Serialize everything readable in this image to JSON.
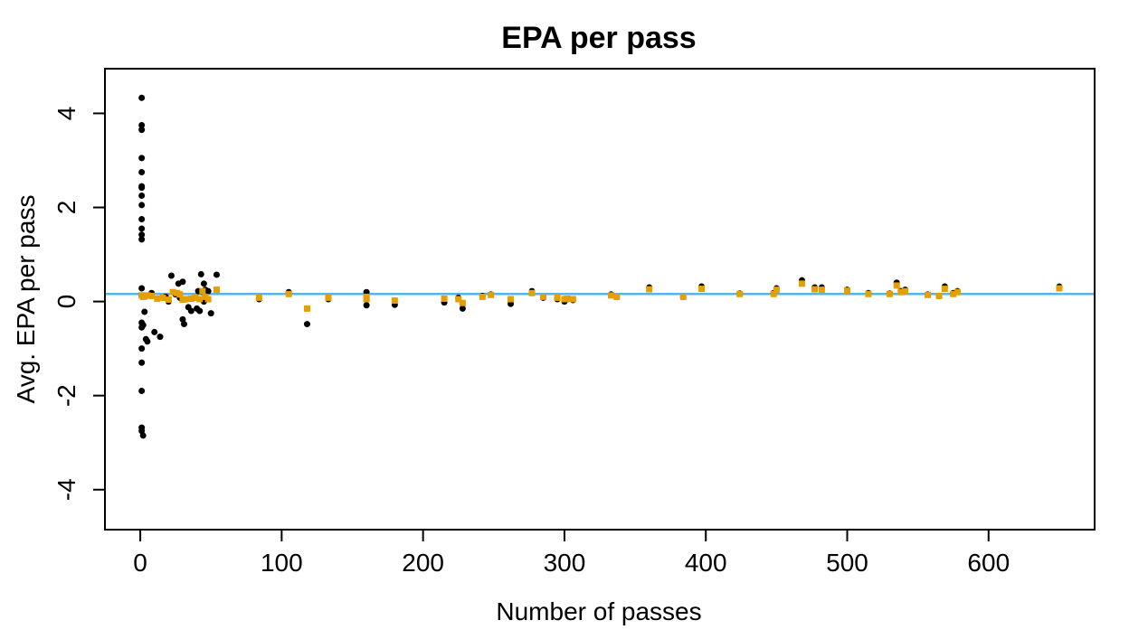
{
  "chart_data": {
    "type": "scatter",
    "title": "EPA per pass",
    "xlabel": "Number of passes",
    "ylabel": "Avg. EPA per pass",
    "xlim": [
      -25,
      675
    ],
    "ylim": [
      -4.85,
      4.95
    ],
    "xticks": [
      0,
      100,
      200,
      300,
      400,
      500,
      600
    ],
    "yticks": [
      -4,
      -2,
      0,
      2,
      4
    ],
    "grid": false,
    "reference_line": {
      "y": 0.16,
      "color": "#56B4E9"
    },
    "series": [
      {
        "marker": "circle",
        "color": "#000000",
        "points": [
          [
            1,
            4.33
          ],
          [
            1,
            3.75
          ],
          [
            1,
            3.65
          ],
          [
            1,
            3.05
          ],
          [
            1,
            2.75
          ],
          [
            1,
            2.45
          ],
          [
            1,
            2.42
          ],
          [
            1,
            2.25
          ],
          [
            1,
            2.05
          ],
          [
            1,
            1.75
          ],
          [
            1,
            1.55
          ],
          [
            1,
            1.42
          ],
          [
            1,
            1.32
          ],
          [
            1,
            0.28
          ],
          [
            1,
            0.12
          ],
          [
            1,
            -0.45
          ],
          [
            1,
            -0.55
          ],
          [
            1,
            -1.0
          ],
          [
            1,
            -1.3
          ],
          [
            1,
            -1.9
          ],
          [
            1,
            -2.68
          ],
          [
            1,
            -2.75
          ],
          [
            2,
            -2.85
          ],
          [
            2,
            -0.5
          ],
          [
            3,
            -0.22
          ],
          [
            4,
            -0.8
          ],
          [
            5,
            -0.85
          ],
          [
            8,
            0.18
          ],
          [
            10,
            -0.65
          ],
          [
            14,
            -0.75
          ],
          [
            18,
            0.1
          ],
          [
            20,
            0.0
          ],
          [
            22,
            0.55
          ],
          [
            25,
            0.15
          ],
          [
            27,
            0.38
          ],
          [
            28,
            0.08
          ],
          [
            30,
            0.42
          ],
          [
            30,
            -0.38
          ],
          [
            31,
            -0.48
          ],
          [
            33,
            0.05
          ],
          [
            34,
            -0.12
          ],
          [
            36,
            -0.2
          ],
          [
            38,
            0.08
          ],
          [
            40,
            -0.15
          ],
          [
            41,
            0.22
          ],
          [
            42,
            -0.2
          ],
          [
            43,
            0.58
          ],
          [
            44,
            0.2
          ],
          [
            45,
            0.38
          ],
          [
            45,
            0.0
          ],
          [
            46,
            0.25
          ],
          [
            48,
            0.22
          ],
          [
            50,
            -0.25
          ],
          [
            54,
            0.57
          ],
          [
            84,
            0.05
          ],
          [
            105,
            0.2
          ],
          [
            118,
            -0.48
          ],
          [
            133,
            0.05
          ],
          [
            160,
            0.2
          ],
          [
            160,
            0.05
          ],
          [
            160,
            -0.08
          ],
          [
            180,
            -0.07
          ],
          [
            215,
            -0.02
          ],
          [
            225,
            0.08
          ],
          [
            228,
            -0.15
          ],
          [
            242,
            0.12
          ],
          [
            248,
            0.15
          ],
          [
            262,
            -0.05
          ],
          [
            277,
            0.22
          ],
          [
            285,
            0.08
          ],
          [
            295,
            0.05
          ],
          [
            300,
            0.0
          ],
          [
            302,
            0.05
          ],
          [
            306,
            0.03
          ],
          [
            333,
            0.15
          ],
          [
            337,
            0.1
          ],
          [
            360,
            0.3
          ],
          [
            384,
            0.1
          ],
          [
            397,
            0.32
          ],
          [
            424,
            0.17
          ],
          [
            448,
            0.18
          ],
          [
            450,
            0.28
          ],
          [
            468,
            0.45
          ],
          [
            477,
            0.3
          ],
          [
            482,
            0.3
          ],
          [
            500,
            0.25
          ],
          [
            515,
            0.18
          ],
          [
            530,
            0.17
          ],
          [
            535,
            0.4
          ],
          [
            538,
            0.22
          ],
          [
            541,
            0.25
          ],
          [
            557,
            0.15
          ],
          [
            565,
            0.12
          ],
          [
            569,
            0.32
          ],
          [
            575,
            0.18
          ],
          [
            578,
            0.22
          ],
          [
            650,
            0.32
          ]
        ]
      },
      {
        "marker": "square",
        "color": "#E69F00",
        "points": [
          [
            1,
            0.13
          ],
          [
            2,
            0.1
          ],
          [
            3,
            0.11
          ],
          [
            5,
            0.13
          ],
          [
            8,
            0.12
          ],
          [
            12,
            0.06
          ],
          [
            16,
            0.08
          ],
          [
            20,
            0.04
          ],
          [
            23,
            0.2
          ],
          [
            26,
            0.18
          ],
          [
            28,
            0.15
          ],
          [
            30,
            0.04
          ],
          [
            32,
            0.05
          ],
          [
            36,
            0.06
          ],
          [
            39,
            0.08
          ],
          [
            42,
            0.05
          ],
          [
            44,
            0.22
          ],
          [
            46,
            0.1
          ],
          [
            48,
            0.05
          ],
          [
            54,
            0.25
          ],
          [
            84,
            0.08
          ],
          [
            105,
            0.16
          ],
          [
            118,
            -0.15
          ],
          [
            133,
            0.08
          ],
          [
            160,
            0.1
          ],
          [
            160,
            0.05
          ],
          [
            180,
            0.02
          ],
          [
            215,
            0.06
          ],
          [
            225,
            0.05
          ],
          [
            228,
            -0.03
          ],
          [
            242,
            0.1
          ],
          [
            248,
            0.14
          ],
          [
            262,
            0.05
          ],
          [
            277,
            0.18
          ],
          [
            285,
            0.1
          ],
          [
            295,
            0.08
          ],
          [
            300,
            0.05
          ],
          [
            302,
            0.06
          ],
          [
            306,
            0.05
          ],
          [
            333,
            0.13
          ],
          [
            337,
            0.1
          ],
          [
            360,
            0.26
          ],
          [
            384,
            0.1
          ],
          [
            397,
            0.27
          ],
          [
            424,
            0.16
          ],
          [
            448,
            0.16
          ],
          [
            450,
            0.25
          ],
          [
            468,
            0.38
          ],
          [
            477,
            0.26
          ],
          [
            482,
            0.25
          ],
          [
            500,
            0.23
          ],
          [
            515,
            0.16
          ],
          [
            530,
            0.16
          ],
          [
            535,
            0.34
          ],
          [
            538,
            0.2
          ],
          [
            541,
            0.22
          ],
          [
            557,
            0.14
          ],
          [
            565,
            0.12
          ],
          [
            569,
            0.27
          ],
          [
            575,
            0.16
          ],
          [
            578,
            0.2
          ],
          [
            650,
            0.28
          ]
        ]
      }
    ]
  }
}
